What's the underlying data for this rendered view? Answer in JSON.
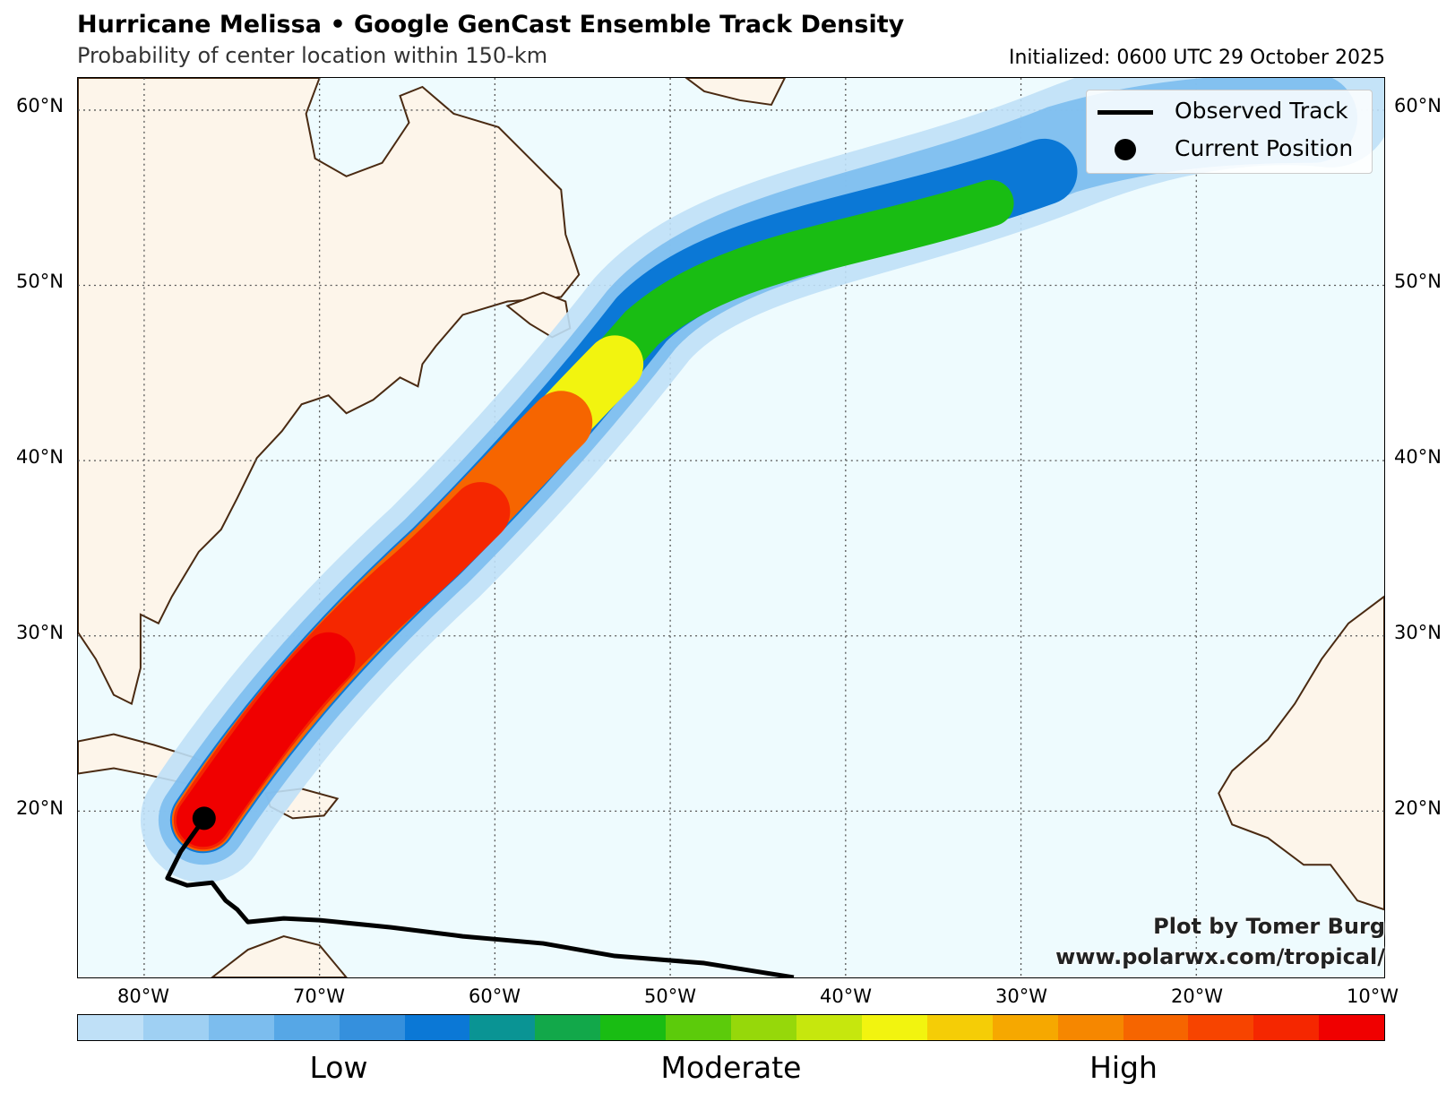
{
  "title": "Hurricane Melissa • Google GenCast Ensemble Track Density",
  "subtitle": "Probability of center location within 150-km",
  "initialized": "Initialized: 0600 UTC 29 October 2025",
  "legend": {
    "observed": "Observed Track",
    "current": "Current Position"
  },
  "credit": {
    "line1": "Plot by Tomer Burg",
    "line2": "www.polarwx.com/tropical/"
  },
  "lat_labels": [
    "60°N",
    "50°N",
    "40°N",
    "30°N",
    "20°N"
  ],
  "lon_labels": [
    "80°W",
    "70°W",
    "60°W",
    "50°W",
    "40°W",
    "30°W",
    "20°W",
    "10°W"
  ],
  "colorbar": {
    "colors": [
      "#bfe0f7",
      "#9fd0f3",
      "#7cbdee",
      "#56a7e6",
      "#3590dd",
      "#0b78d6",
      "#0a9494",
      "#12a84a",
      "#19bd13",
      "#5ccb0b",
      "#96d80a",
      "#c6e70d",
      "#f2f40f",
      "#f5cd06",
      "#f6a800",
      "#f68700",
      "#f66500",
      "#f74400",
      "#f52700",
      "#f00000"
    ],
    "labels": [
      "Low",
      "Moderate",
      "High"
    ]
  },
  "colors": {
    "ocean": "#eefbfe",
    "land": "#fdf5ea",
    "coast": "#4a2a12",
    "track": "#000000",
    "grid": "#555555"
  }
}
